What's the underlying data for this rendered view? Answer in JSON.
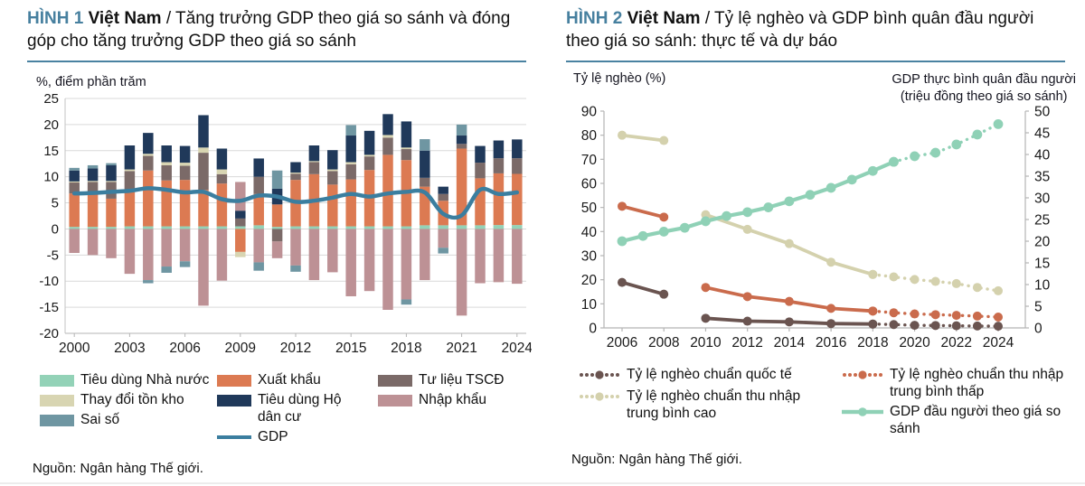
{
  "page": {
    "accent": "#4a82a1",
    "text": "#1a1a1a",
    "grid": "#d9d9d9",
    "axis": "#b5b5b5"
  },
  "fig1": {
    "label": "HÌNH 1",
    "country": "Việt Nam",
    "title_rest": " / Tăng trưởng GDP theo giá so sánh và đóng góp cho tăng trưởng GDP theo giá so sánh",
    "axis_unit": "%, điểm phần trăm",
    "source": "Nguồn: Ngân hàng Thế giới.",
    "legend_cols": [
      [
        {
          "label": "Tiêu dùng Nhà nước",
          "color": "#93d2b7",
          "type": "rect"
        },
        {
          "label": "Thay đổi tồn kho",
          "color": "#d8d5b2",
          "type": "rect"
        },
        {
          "label": "Sai số",
          "color": "#6f96a2",
          "type": "rect"
        }
      ],
      [
        {
          "label": "Xuất khẩu",
          "color": "#dc7a52",
          "type": "rect"
        },
        {
          "label": "Tiêu dùng Hộ dân cư",
          "color": "#20395a",
          "type": "rect"
        },
        {
          "label": "GDP",
          "color": "#3b7e9f",
          "type": "line"
        }
      ],
      [
        {
          "label": "Tư liệu TSCĐ",
          "color": "#7b6a68",
          "type": "rect"
        },
        {
          "label": "Nhập khẩu",
          "color": "#bd9195",
          "type": "rect"
        }
      ]
    ]
  },
  "fig2": {
    "label": "HÌNH 2",
    "country": "Việt Nam",
    "title_rest": " / Tỷ lệ nghèo và GDP bình quân đầu người theo giá so sánh: thực tế và dự báo",
    "left_axis_label": "Tỷ lệ nghèo (%)",
    "right_axis_label_1": "GDP thực bình quân đầu người",
    "right_axis_label_2": "(triệu đồng theo giá so sánh)",
    "source": "Nguồn: Ngân hàng Thế giới.",
    "legend_cols": [
      [
        {
          "label": "Tỷ lệ nghèo chuẩn quốc tế",
          "color": "#6a5450",
          "type": "dotline"
        },
        {
          "label": "Tỷ lệ nghèo chuẩn thu nhập trung bình cao",
          "color": "#d4d1ad",
          "type": "dotline"
        }
      ],
      [
        {
          "label": "Tỷ lệ nghèo chuẩn thu nhập trung bình thấp",
          "color": "#ca6b4c",
          "type": "dotline"
        },
        {
          "label": "GDP đầu người theo giá so sánh",
          "color": "#8fd1b6",
          "type": "linedot"
        }
      ]
    ]
  },
  "chart_data": [
    {
      "type": "bar",
      "title": "Tăng trưởng GDP theo giá so sánh và đóng góp cho tăng trưởng GDP theo giá so sánh",
      "ylabel": "%, điểm phần trăm",
      "ylim": [
        -20,
        25
      ],
      "ytick_step": 5,
      "grid": "horizontal",
      "categories": [
        2000,
        2001,
        2002,
        2003,
        2004,
        2005,
        2006,
        2007,
        2008,
        2009,
        2010,
        2011,
        2012,
        2013,
        2014,
        2015,
        2016,
        2017,
        2018,
        2019,
        2020,
        2021,
        2022,
        2023,
        2024
      ],
      "xtick_labels": [
        "2000",
        "2003",
        "2006",
        "2009",
        "2012",
        "2015",
        "2018",
        "2021",
        "2024"
      ],
      "series": [
        {
          "name": "Tiêu dùng Nhà nước",
          "color": "#93d2b7",
          "values": [
            0.4,
            0.4,
            0.4,
            0.5,
            0.5,
            0.5,
            0.5,
            0.5,
            0.5,
            0.5,
            0.7,
            0.4,
            0.5,
            0.5,
            0.5,
            0.5,
            0.5,
            0.5,
            0.5,
            0.7,
            0.7,
            0.7,
            0.7,
            0.75,
            0.75
          ]
        },
        {
          "name": "Xuất khẩu",
          "color": "#dc7a52",
          "values": [
            6.4,
            6.2,
            5.4,
            6.6,
            10.7,
            8.8,
            8.9,
            7.0,
            8.2,
            -4.4,
            6.0,
            4.3,
            8.9,
            10.0,
            8.0,
            9.0,
            10.8,
            13.7,
            12.7,
            7.4,
            4.7,
            14.7,
            9.0,
            9.9,
            9.8
          ]
        },
        {
          "name": "Tư liệu TSCĐ",
          "color": "#7b6a68",
          "values": [
            2.1,
            2.4,
            3.2,
            4.0,
            2.8,
            2.9,
            2.7,
            7.1,
            1.8,
            1.5,
            3.3,
            -2.4,
            1.2,
            2.3,
            2.6,
            2.9,
            2.6,
            3.3,
            2.1,
            1.7,
            1.3,
            0.9,
            3.0,
            2.9,
            3.0
          ]
        },
        {
          "name": "Thay đổi tồn kho",
          "color": "#d8d5b2",
          "values": [
            0.2,
            0.2,
            0.2,
            0.3,
            0.4,
            0.6,
            0.6,
            1.0,
            0.9,
            -1.0,
            0,
            0,
            0.2,
            0.2,
            0.3,
            0.4,
            0.3,
            0.5,
            0.3,
            0,
            0,
            0,
            0,
            0,
            0
          ]
        },
        {
          "name": "Tiêu dùng Hộ dân cư",
          "color": "#20395a",
          "values": [
            2.1,
            2.4,
            3.0,
            4.6,
            4.0,
            3.2,
            3.2,
            6.2,
            4.0,
            1.5,
            3.5,
            3.0,
            2.0,
            3.0,
            3.7,
            5.1,
            4.6,
            4.0,
            5.0,
            5.2,
            1.4,
            1.6,
            3.2,
            3.4,
            3.6
          ]
        },
        {
          "name": "Nhập khẩu",
          "color": "#bd9195",
          "values": [
            -4.6,
            -5.0,
            -5.6,
            -8.6,
            -9.8,
            -7.2,
            -6.2,
            -14.7,
            -9.9,
            5.5,
            -6.4,
            -3.2,
            -7.0,
            -9.8,
            -8.3,
            -12.9,
            -11.9,
            -15.5,
            -13.5,
            -9.8,
            -3.6,
            -16.6,
            -10.4,
            -10.2,
            -10.5
          ]
        },
        {
          "name": "Sai số",
          "color": "#6f96a2",
          "values": [
            0.5,
            0.6,
            0.4,
            0,
            -0.6,
            -1.2,
            -1.1,
            0,
            0,
            0,
            -1.6,
            3.5,
            -1.2,
            0,
            0,
            2.0,
            0,
            0,
            -1.0,
            2.2,
            -1.1,
            2.1,
            0,
            0,
            0
          ]
        }
      ],
      "line": {
        "name": "GDP",
        "color": "#3b7e9f",
        "values": [
          6.8,
          6.9,
          7.1,
          7.3,
          7.8,
          7.5,
          7.0,
          7.1,
          5.7,
          5.4,
          6.4,
          6.2,
          5.2,
          5.4,
          6.0,
          6.7,
          6.2,
          6.8,
          7.1,
          7.0,
          2.9,
          2.6,
          7.5,
          6.7,
          7.0
        ]
      }
    },
    {
      "type": "line",
      "title": "Tỷ lệ nghèo và GDP bình quân đầu người theo giá so sánh: thực tế và dự báo",
      "left_axis": {
        "label": "Tỷ lệ nghèo (%)",
        "lim": [
          0,
          90
        ],
        "step": 10
      },
      "right_axis": {
        "label": "GDP thực bình quân đầu người (triệu đồng theo giá so sánh)",
        "lim": [
          0,
          50
        ],
        "step": 5
      },
      "xlim": [
        2006,
        2024
      ],
      "xtick_labels": [
        "2006",
        "2008",
        "2010",
        "2012",
        "2014",
        "2016",
        "2018",
        "2020",
        "2022",
        "2024"
      ],
      "grid": "off",
      "series": [
        {
          "name": "Tỷ lệ nghèo chuẩn quốc tế",
          "color": "#6a5450",
          "axis": "left",
          "segments": [
            {
              "style": "solid",
              "points": [
                [
                  2006,
                  18.9
                ],
                [
                  2008,
                  14.0
                ]
              ]
            },
            {
              "style": "solid",
              "points": [
                [
                  2010,
                  4.0
                ],
                [
                  2012,
                  2.8
                ],
                [
                  2014,
                  2.5
                ],
                [
                  2016,
                  1.8
                ],
                [
                  2018,
                  1.6
                ]
              ]
            },
            {
              "style": "dotted",
              "points": [
                [
                  2018,
                  1.6
                ],
                [
                  2019,
                  1.4
                ],
                [
                  2020,
                  1.1
                ],
                [
                  2021,
                  1.0
                ],
                [
                  2022,
                  0.9
                ],
                [
                  2023,
                  0.8
                ],
                [
                  2024,
                  0.7
                ]
              ]
            }
          ]
        },
        {
          "name": "Tỷ lệ nghèo chuẩn thu nhập trung bình thấp",
          "color": "#ca6b4c",
          "axis": "left",
          "segments": [
            {
              "style": "solid",
              "points": [
                [
                  2006,
                  50.5
                ],
                [
                  2008,
                  46.0
                ]
              ]
            },
            {
              "style": "solid",
              "points": [
                [
                  2010,
                  16.8
                ],
                [
                  2012,
                  13.0
                ],
                [
                  2014,
                  11.0
                ],
                [
                  2016,
                  8.1
                ],
                [
                  2018,
                  7.0
                ]
              ]
            },
            {
              "style": "dotted",
              "points": [
                [
                  2018,
                  7.0
                ],
                [
                  2019,
                  6.3
                ],
                [
                  2020,
                  5.8
                ],
                [
                  2021,
                  5.5
                ],
                [
                  2022,
                  5.2
                ],
                [
                  2023,
                  4.9
                ],
                [
                  2024,
                  4.5
                ]
              ]
            }
          ]
        },
        {
          "name": "Tỷ lệ nghèo chuẩn thu nhập trung bình cao",
          "color": "#d4d1ad",
          "axis": "left",
          "segments": [
            {
              "style": "solid",
              "points": [
                [
                  2006,
                  80.0
                ],
                [
                  2008,
                  77.8
                ]
              ]
            },
            {
              "style": "solid",
              "points": [
                [
                  2010,
                  47.0
                ],
                [
                  2012,
                  40.9
                ],
                [
                  2014,
                  35.0
                ],
                [
                  2016,
                  27.3
                ],
                [
                  2018,
                  22.2
                ]
              ]
            },
            {
              "style": "dotted",
              "points": [
                [
                  2018,
                  22.2
                ],
                [
                  2019,
                  21.2
                ],
                [
                  2020,
                  20.1
                ],
                [
                  2021,
                  19.3
                ],
                [
                  2022,
                  18.4
                ],
                [
                  2023,
                  16.8
                ],
                [
                  2024,
                  15.4
                ]
              ]
            }
          ]
        },
        {
          "name": "GDP đầu người theo giá so sánh",
          "color": "#8fd1b6",
          "axis": "right",
          "segments": [
            {
              "style": "solid",
              "points": [
                [
                  2006,
                  20.0
                ],
                [
                  2007,
                  21.2
                ],
                [
                  2008,
                  22.2
                ],
                [
                  2009,
                  23.1
                ],
                [
                  2010,
                  24.6
                ],
                [
                  2011,
                  25.8
                ],
                [
                  2012,
                  26.7
                ],
                [
                  2013,
                  27.8
                ],
                [
                  2014,
                  29.2
                ],
                [
                  2015,
                  30.7
                ],
                [
                  2016,
                  32.3
                ],
                [
                  2017,
                  34.2
                ],
                [
                  2018,
                  36.2
                ],
                [
                  2019,
                  38.3
                ]
              ]
            },
            {
              "style": "dotted",
              "points": [
                [
                  2019,
                  38.3
                ],
                [
                  2020,
                  39.6
                ],
                [
                  2021,
                  40.4
                ],
                [
                  2022,
                  42.3
                ],
                [
                  2023,
                  44.6
                ],
                [
                  2024,
                  47.0
                ]
              ]
            }
          ]
        }
      ]
    }
  ]
}
